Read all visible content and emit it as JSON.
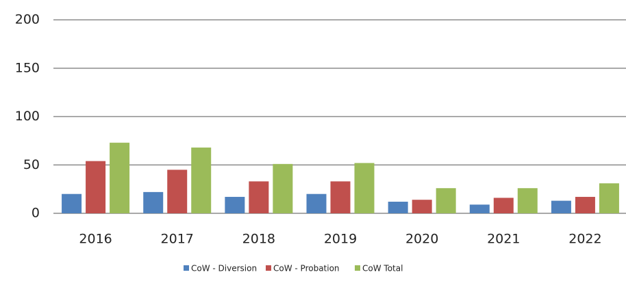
{
  "chart_data": {
    "type": "bar",
    "categories": [
      "2016",
      "2017",
      "2018",
      "2019",
      "2020",
      "2021",
      "2022"
    ],
    "series": [
      {
        "name": "CoW - Diversion",
        "color": "#4f81bd",
        "values": [
          20,
          22,
          17,
          20,
          12,
          9,
          13
        ]
      },
      {
        "name": "CoW - Probation",
        "color": "#c0504d",
        "values": [
          54,
          45,
          33,
          33,
          14,
          16,
          17
        ]
      },
      {
        "name": "CoW Total",
        "color": "#9bbb59",
        "values": [
          73,
          68,
          51,
          52,
          26,
          26,
          31
        ]
      }
    ],
    "ylim": [
      0,
      200
    ],
    "yticks": [
      0,
      50,
      100,
      150,
      200
    ],
    "grid": true,
    "legend": "bottom"
  }
}
